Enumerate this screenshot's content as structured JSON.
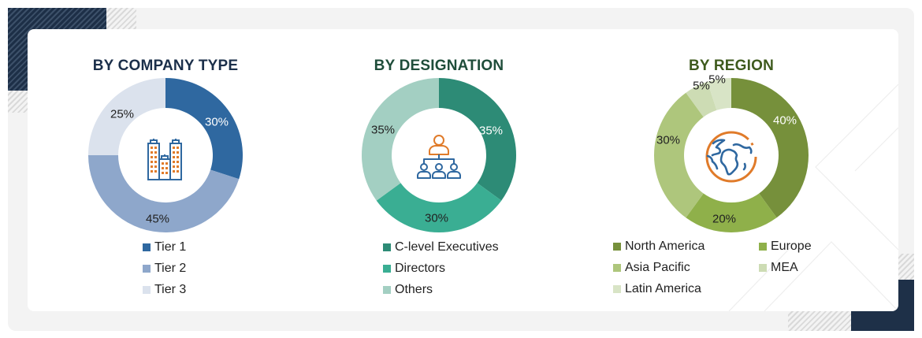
{
  "charts": {
    "company": {
      "title": "BY COMPANY TYPE",
      "title_color": "#1b2f4a",
      "icon": "buildings-icon",
      "slices": [
        {
          "label": "Tier 1",
          "value": 30,
          "text": "30%",
          "color": "#2f68a0",
          "text_color": "#ffffff"
        },
        {
          "label": "Tier 2",
          "value": 45,
          "text": "45%",
          "color": "#8ea7cb",
          "text_color": "#222222"
        },
        {
          "label": "Tier 3",
          "value": 25,
          "text": "25%",
          "color": "#dbe2ed",
          "text_color": "#222222"
        }
      ]
    },
    "designation": {
      "title": "BY DESIGNATION",
      "title_color": "#1f4d3a",
      "icon": "org-hierarchy-icon",
      "slices": [
        {
          "label": "C-level Executives",
          "value": 35,
          "text": "35%",
          "color": "#2d8b76",
          "text_color": "#ffffff"
        },
        {
          "label": "Directors",
          "value": 30,
          "text": "30%",
          "color": "#3aae93",
          "text_color": "#222222"
        },
        {
          "label": "Others",
          "value": 35,
          "text": "35%",
          "color": "#a3cfc2",
          "text_color": "#222222"
        }
      ]
    },
    "region": {
      "title": "BY REGION",
      "title_color": "#3e5a1d",
      "icon": "globe-icon",
      "slices": [
        {
          "label": "North America",
          "value": 40,
          "text": "40%",
          "color": "#76903b",
          "text_color": "#ffffff"
        },
        {
          "label": "Europe",
          "value": 20,
          "text": "20%",
          "color": "#8fb04a",
          "text_color": "#222222"
        },
        {
          "label": "Asia Pacific",
          "value": 30,
          "text": "30%",
          "color": "#aec67c",
          "text_color": "#222222"
        },
        {
          "label": "MEA",
          "value": 5,
          "text": "5%",
          "color": "#cddcb4",
          "text_color": "#222222"
        },
        {
          "label": "Latin America",
          "value": 5,
          "text": "5%",
          "color": "#d8e4c6",
          "text_color": "#222222"
        }
      ]
    }
  },
  "chart_data": [
    {
      "type": "pie",
      "title": "BY COMPANY TYPE",
      "categories": [
        "Tier 1",
        "Tier 2",
        "Tier 3"
      ],
      "values": [
        30,
        45,
        25
      ],
      "unit": "%",
      "donut": true,
      "legend_position": "bottom"
    },
    {
      "type": "pie",
      "title": "BY DESIGNATION",
      "categories": [
        "C-level Executives",
        "Directors",
        "Others"
      ],
      "values": [
        35,
        30,
        35
      ],
      "unit": "%",
      "donut": true,
      "legend_position": "bottom"
    },
    {
      "type": "pie",
      "title": "BY REGION",
      "categories": [
        "North America",
        "Europe",
        "Asia Pacific",
        "MEA",
        "Latin America"
      ],
      "values": [
        40,
        20,
        30,
        5,
        5
      ],
      "unit": "%",
      "donut": true,
      "legend_position": "bottom"
    }
  ]
}
